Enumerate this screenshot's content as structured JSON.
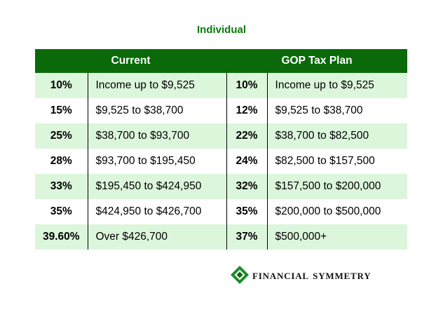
{
  "caption": "Individual",
  "columns": {
    "current": "Current",
    "gop": "GOP Tax Plan"
  },
  "rows": [
    {
      "current_rate": "10%",
      "current_range": "Income up to $9,525",
      "gop_rate": "10%",
      "gop_range": "Income up to $9,525"
    },
    {
      "current_rate": "15%",
      "current_range": "$9,525 to $38,700",
      "gop_rate": "12%",
      "gop_range": "$9,525 to $38,700"
    },
    {
      "current_rate": "25%",
      "current_range": "$38,700 to $93,700",
      "gop_rate": "22%",
      "gop_range": "$38,700 to $82,500"
    },
    {
      "current_rate": "28%",
      "current_range": "$93,700 to $195,450",
      "gop_rate": "24%",
      "gop_range": "$82,500 to $157,500"
    },
    {
      "current_rate": "33%",
      "current_range": "$195,450 to $424,950",
      "gop_rate": "32%",
      "gop_range": "$157,500 to $200,000"
    },
    {
      "current_rate": "35%",
      "current_range": "$424,950 to $426,700",
      "gop_rate": "35%",
      "gop_range": "$200,000 to $500,000"
    },
    {
      "current_rate": "39.60%",
      "current_range": "Over $426,700",
      "gop_rate": "37%",
      "gop_range": "$500,000+"
    }
  ],
  "colors": {
    "header_bg": "#0a6a0a",
    "row_tint": "#dcf6dc",
    "caption": "#0b7a0b",
    "logo_green": "#1b8a2a"
  },
  "logo": {
    "icon": "diamond-logo-icon",
    "text": "Financial Symmetry"
  }
}
